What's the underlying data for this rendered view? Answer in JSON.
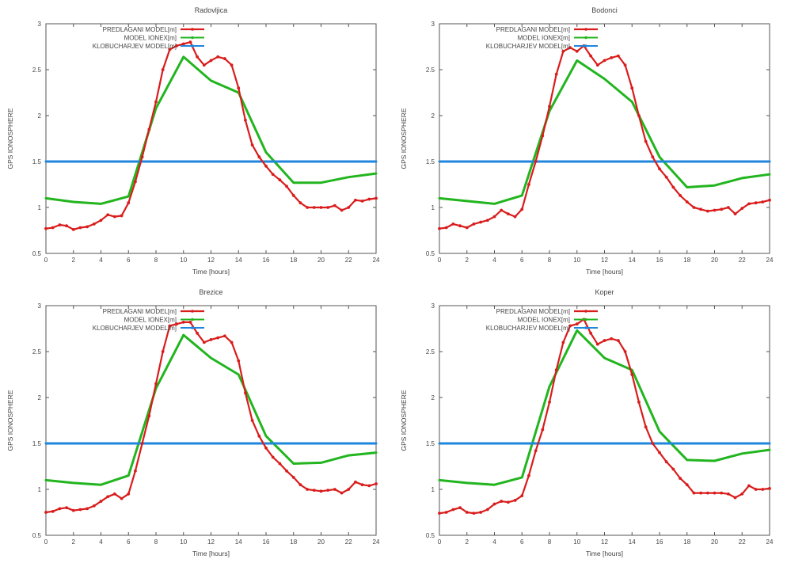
{
  "colors": {
    "series": [
      "#d91c1c",
      "#22b51f",
      "#1f86de"
    ],
    "axis": "#555555",
    "grid": "#e8e8e8",
    "text": "#444444"
  },
  "chart_data": [
    {
      "type": "line",
      "title": "Radovljica",
      "xlabel": "Time [hours]",
      "ylabel": "GPS IONOSPHERE",
      "xlim": [
        0,
        24
      ],
      "ylim": [
        0.5,
        3
      ],
      "xticks": [
        "0",
        "2",
        "4",
        "6",
        "8",
        "10",
        "12",
        "14",
        "16",
        "18",
        "20",
        "22",
        "24"
      ],
      "yticks": [
        "0.5",
        "1",
        "1.5",
        "2",
        "2.5",
        "3"
      ],
      "legend_position": "top-left",
      "grid": false,
      "series": [
        {
          "name": "PREDLAGANI MODEL[m]",
          "x": [
            0,
            0.5,
            1,
            1.5,
            2,
            2.5,
            3,
            3.5,
            4,
            4.5,
            5,
            5.5,
            6,
            6.5,
            7,
            7.5,
            8,
            8.5,
            9,
            9.5,
            10,
            10.5,
            11,
            11.5,
            12,
            12.5,
            13,
            13.5,
            14,
            14.5,
            15,
            15.5,
            16,
            16.5,
            17,
            17.5,
            18,
            18.5,
            19,
            19.5,
            20,
            20.5,
            21,
            21.5,
            22,
            22.5,
            23,
            23.5,
            24
          ],
          "values": [
            0.77,
            0.78,
            0.81,
            0.8,
            0.76,
            0.78,
            0.79,
            0.82,
            0.86,
            0.92,
            0.9,
            0.91,
            1.05,
            1.28,
            1.55,
            1.85,
            2.15,
            2.5,
            2.72,
            2.76,
            2.78,
            2.8,
            2.64,
            2.55,
            2.6,
            2.64,
            2.62,
            2.55,
            2.3,
            1.95,
            1.68,
            1.55,
            1.45,
            1.36,
            1.3,
            1.23,
            1.13,
            1.05,
            1.0,
            1.0,
            1.0,
            1.0,
            1.02,
            0.97,
            1.0,
            1.08,
            1.07,
            1.09,
            1.1
          ]
        },
        {
          "name": "MODEL IONEX[m]",
          "x": [
            0,
            2,
            4,
            6,
            8,
            10,
            12,
            14,
            16,
            18,
            20,
            22,
            24
          ],
          "values": [
            1.1,
            1.06,
            1.04,
            1.12,
            2.08,
            2.64,
            2.38,
            2.25,
            1.6,
            1.27,
            1.27,
            1.33,
            1.37
          ]
        },
        {
          "name": "KLOBUCHARJEV MODEL[m]",
          "x": [
            0,
            24
          ],
          "values": [
            1.5,
            1.5
          ]
        }
      ]
    },
    {
      "type": "line",
      "title": "Bodonci",
      "xlabel": "Time [hours]",
      "ylabel": "GPS IONOSPHERE",
      "xlim": [
        0,
        24
      ],
      "ylim": [
        0.5,
        3
      ],
      "xticks": [
        "0",
        "2",
        "4",
        "6",
        "8",
        "10",
        "12",
        "14",
        "16",
        "18",
        "20",
        "22",
        "24"
      ],
      "yticks": [
        "0.5",
        "1",
        "1.5",
        "2",
        "2.5",
        "3"
      ],
      "legend_position": "top-left",
      "grid": false,
      "series": [
        {
          "name": "PREDLAGANI MODEL[m]",
          "x": [
            0,
            0.5,
            1,
            1.5,
            2,
            2.5,
            3,
            3.5,
            4,
            4.5,
            5,
            5.5,
            6,
            6.5,
            7,
            7.5,
            8,
            8.5,
            9,
            9.5,
            10,
            10.5,
            11,
            11.5,
            12,
            12.5,
            13,
            13.5,
            14,
            14.5,
            15,
            15.5,
            16,
            16.5,
            17,
            17.5,
            18,
            18.5,
            19,
            19.5,
            20,
            20.5,
            21,
            21.5,
            22,
            22.5,
            23,
            23.5,
            24
          ],
          "values": [
            0.77,
            0.78,
            0.82,
            0.8,
            0.78,
            0.82,
            0.84,
            0.86,
            0.9,
            0.97,
            0.93,
            0.9,
            0.98,
            1.25,
            1.5,
            1.78,
            2.1,
            2.45,
            2.7,
            2.74,
            2.7,
            2.76,
            2.65,
            2.55,
            2.6,
            2.63,
            2.65,
            2.55,
            2.3,
            2.0,
            1.72,
            1.55,
            1.42,
            1.33,
            1.22,
            1.13,
            1.06,
            1.0,
            0.98,
            0.96,
            0.97,
            0.98,
            1.0,
            0.93,
            0.99,
            1.04,
            1.05,
            1.06,
            1.08
          ]
        },
        {
          "name": "MODEL IONEX[m]",
          "x": [
            0,
            2,
            4,
            6,
            8,
            10,
            12,
            14,
            16,
            18,
            20,
            22,
            24
          ],
          "values": [
            1.1,
            1.07,
            1.04,
            1.13,
            2.05,
            2.6,
            2.4,
            2.15,
            1.55,
            1.22,
            1.24,
            1.32,
            1.36
          ]
        },
        {
          "name": "KLOBUCHARJEV MODEL[m]",
          "x": [
            0,
            24
          ],
          "values": [
            1.5,
            1.5
          ]
        }
      ]
    },
    {
      "type": "line",
      "title": "Brezice",
      "xlabel": "Time [hours]",
      "ylabel": "GPS IONOSPHERE",
      "xlim": [
        0,
        24
      ],
      "ylim": [
        0.5,
        3
      ],
      "xticks": [
        "0",
        "2",
        "4",
        "6",
        "8",
        "10",
        "12",
        "14",
        "16",
        "18",
        "20",
        "22",
        "24"
      ],
      "yticks": [
        "0.5",
        "1",
        "1.5",
        "2",
        "2.5",
        "3"
      ],
      "legend_position": "top-left",
      "grid": false,
      "series": [
        {
          "name": "PREDLAGANI MODEL[m]",
          "x": [
            0,
            0.5,
            1,
            1.5,
            2,
            2.5,
            3,
            3.5,
            4,
            4.5,
            5,
            5.5,
            6,
            6.5,
            7,
            7.5,
            8,
            8.5,
            9,
            9.5,
            10,
            10.5,
            11,
            11.5,
            12,
            12.5,
            13,
            13.5,
            14,
            14.5,
            15,
            15.5,
            16,
            16.5,
            17,
            17.5,
            18,
            18.5,
            19,
            19.5,
            20,
            20.5,
            21,
            21.5,
            22,
            22.5,
            23,
            23.5,
            24
          ],
          "values": [
            0.75,
            0.76,
            0.79,
            0.8,
            0.77,
            0.78,
            0.79,
            0.82,
            0.87,
            0.92,
            0.95,
            0.9,
            0.95,
            1.2,
            1.5,
            1.8,
            2.15,
            2.5,
            2.78,
            2.8,
            2.82,
            2.82,
            2.7,
            2.6,
            2.63,
            2.65,
            2.67,
            2.6,
            2.4,
            2.05,
            1.75,
            1.58,
            1.45,
            1.35,
            1.28,
            1.2,
            1.13,
            1.05,
            1.0,
            0.99,
            0.98,
            0.99,
            1.0,
            0.96,
            1.0,
            1.08,
            1.05,
            1.04,
            1.06
          ]
        },
        {
          "name": "MODEL IONEX[m]",
          "x": [
            0,
            2,
            4,
            6,
            8,
            10,
            12,
            14,
            16,
            18,
            20,
            22,
            24
          ],
          "values": [
            1.1,
            1.07,
            1.05,
            1.15,
            2.1,
            2.68,
            2.43,
            2.25,
            1.58,
            1.28,
            1.29,
            1.37,
            1.4
          ]
        },
        {
          "name": "KLOBUCHARJEV MODEL[m]",
          "x": [
            0,
            24
          ],
          "values": [
            1.5,
            1.5
          ]
        }
      ]
    },
    {
      "type": "line",
      "title": "Koper",
      "xlabel": "Time [hours]",
      "ylabel": "GPS IONOSPHERE",
      "xlim": [
        0,
        24
      ],
      "ylim": [
        0.5,
        3
      ],
      "xticks": [
        "0",
        "2",
        "4",
        "6",
        "8",
        "10",
        "12",
        "14",
        "16",
        "18",
        "20",
        "22",
        "24"
      ],
      "yticks": [
        "0.5",
        "1",
        "1.5",
        "2",
        "2.5",
        "3"
      ],
      "legend_position": "top-left",
      "grid": false,
      "series": [
        {
          "name": "PREDLAGANI MODEL[m]",
          "x": [
            0,
            0.5,
            1,
            1.5,
            2,
            2.5,
            3,
            3.5,
            4,
            4.5,
            5,
            5.5,
            6,
            6.5,
            7,
            7.5,
            8,
            8.5,
            9,
            9.5,
            10,
            10.5,
            11,
            11.5,
            12,
            12.5,
            13,
            13.5,
            14,
            14.5,
            15,
            15.5,
            16,
            16.5,
            17,
            17.5,
            18,
            18.5,
            19,
            19.5,
            20,
            20.5,
            21,
            21.5,
            22,
            22.5,
            23,
            23.5,
            24
          ],
          "values": [
            0.74,
            0.75,
            0.78,
            0.8,
            0.75,
            0.74,
            0.75,
            0.78,
            0.84,
            0.87,
            0.86,
            0.88,
            0.93,
            1.15,
            1.42,
            1.65,
            1.95,
            2.3,
            2.6,
            2.78,
            2.8,
            2.85,
            2.7,
            2.58,
            2.62,
            2.64,
            2.62,
            2.5,
            2.25,
            1.95,
            1.68,
            1.5,
            1.4,
            1.3,
            1.22,
            1.12,
            1.05,
            0.96,
            0.96,
            0.96,
            0.96,
            0.96,
            0.95,
            0.91,
            0.95,
            1.04,
            1.0,
            1.0,
            1.01
          ]
        },
        {
          "name": "MODEL IONEX[m]",
          "x": [
            0,
            2,
            4,
            6,
            8,
            10,
            12,
            14,
            16,
            18,
            20,
            22,
            24
          ],
          "values": [
            1.1,
            1.07,
            1.05,
            1.13,
            2.12,
            2.73,
            2.43,
            2.3,
            1.63,
            1.32,
            1.31,
            1.39,
            1.43
          ]
        },
        {
          "name": "KLOBUCHARJEV MODEL[m]",
          "x": [
            0,
            24
          ],
          "values": [
            1.5,
            1.5
          ]
        }
      ]
    }
  ]
}
